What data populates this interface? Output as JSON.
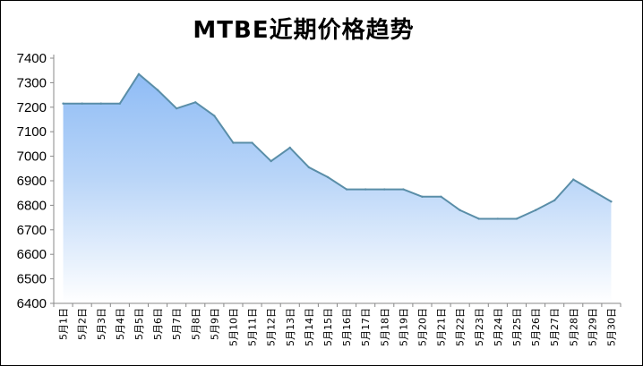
{
  "chart_data": {
    "type": "area",
    "title": "MTBE近期价格趋势",
    "xlabel": "",
    "ylabel": "",
    "ylim": [
      6400,
      7400
    ],
    "yticks": [
      6400,
      6500,
      6600,
      6700,
      6800,
      6900,
      7000,
      7100,
      7200,
      7300,
      7400
    ],
    "grid": false,
    "legend": "none",
    "categories": [
      "5月1日",
      "5月2日",
      "5月3日",
      "5月4日",
      "5月5日",
      "5月6日",
      "5月7日",
      "5月8日",
      "5月9日",
      "5月10日",
      "5月11日",
      "5月12日",
      "5月13日",
      "5月14日",
      "5月15日",
      "5月16日",
      "5月17日",
      "5月18日",
      "5月19日",
      "5月20日",
      "5月21日",
      "5月22日",
      "5月23日",
      "5月24日",
      "5月25日",
      "5月26日",
      "5月27日",
      "5月28日",
      "5月29日",
      "5月30日"
    ],
    "values": [
      7215,
      7215,
      7215,
      7215,
      7335,
      7270,
      7195,
      7220,
      7165,
      7055,
      7055,
      6980,
      7035,
      6955,
      6915,
      6865,
      6865,
      6865,
      6865,
      6835,
      6835,
      6780,
      6745,
      6745,
      6745,
      6780,
      6820,
      6905,
      6860,
      6815
    ],
    "colors": {
      "line": "#5a8ea8",
      "fill_top": "#8fbcf5",
      "fill_bottom": "#ffffff",
      "axis": "#888888"
    }
  }
}
